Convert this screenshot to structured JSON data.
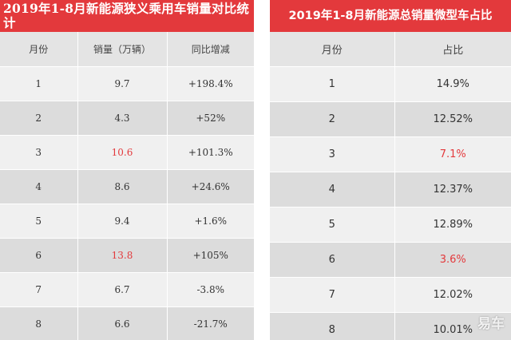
{
  "left": {
    "title": "2019年1-8月新能源狭义乘用车销量对比统计",
    "headers": [
      "月份",
      "销量（万辆）",
      "同比增减"
    ],
    "rows": [
      {
        "month": "1",
        "sales": "9.7",
        "yoy": "+198.4%"
      },
      {
        "month": "2",
        "sales": "4.3",
        "yoy": "+52%"
      },
      {
        "month": "3",
        "sales": "10.6",
        "yoy": "+101.3%"
      },
      {
        "month": "4",
        "sales": "8.6",
        "yoy": "+24.6%"
      },
      {
        "month": "5",
        "sales": "9.4",
        "yoy": "+1.6%"
      },
      {
        "month": "6",
        "sales": "13.8",
        "yoy": "+105%"
      },
      {
        "month": "7",
        "sales": "6.7",
        "yoy": "-3.8%"
      },
      {
        "month": "8",
        "sales": "6.6",
        "yoy": "-21.7%"
      }
    ]
  },
  "right": {
    "title": "2019年1-8月新能源总销量微型车占比",
    "headers": [
      "月份",
      "占比"
    ],
    "rows": [
      {
        "month": "1",
        "share": "14.9%"
      },
      {
        "month": "2",
        "share": "12.52%"
      },
      {
        "month": "3",
        "share": "7.1%"
      },
      {
        "month": "4",
        "share": "12.37%"
      },
      {
        "month": "5",
        "share": "12.89%"
      },
      {
        "month": "6",
        "share": "3.6%"
      },
      {
        "month": "7",
        "share": "12.02%"
      },
      {
        "month": "8",
        "share": "10.01%"
      }
    ]
  },
  "watermark": "易车",
  "highlight_color": "#e3393c"
}
